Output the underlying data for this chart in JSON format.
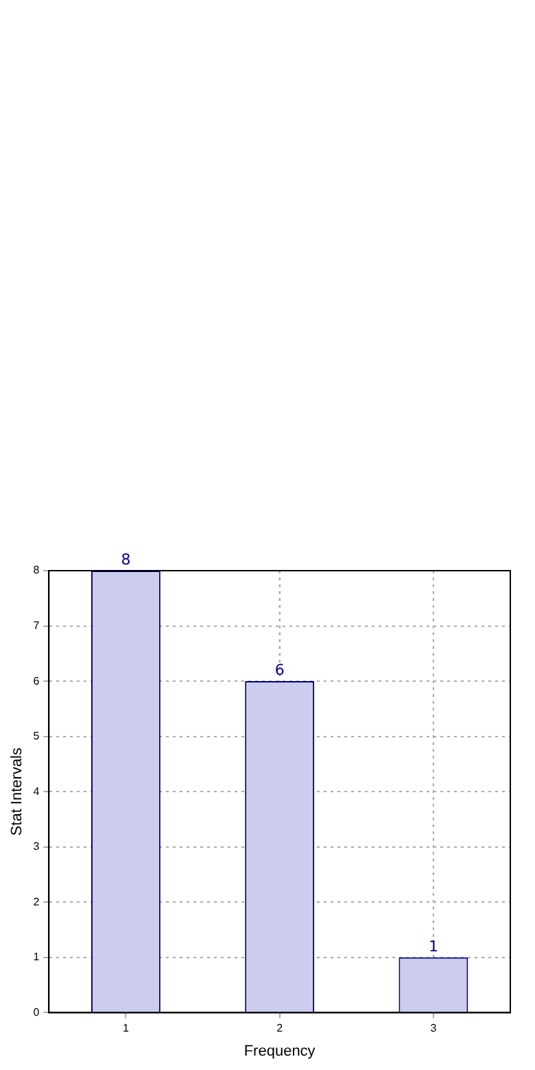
{
  "chart_data": {
    "type": "bar",
    "xlabel": "Frequency",
    "ylabel": "Stat Intervals",
    "categories": [
      "1",
      "2",
      "3"
    ],
    "values": [
      8,
      6,
      1
    ],
    "color": "#ccccee",
    "ylim": [
      0,
      8
    ],
    "yticks": [
      0,
      1,
      2,
      3,
      4,
      5,
      6,
      7,
      8
    ],
    "grid": true,
    "data_labels": true,
    "legend": false
  }
}
